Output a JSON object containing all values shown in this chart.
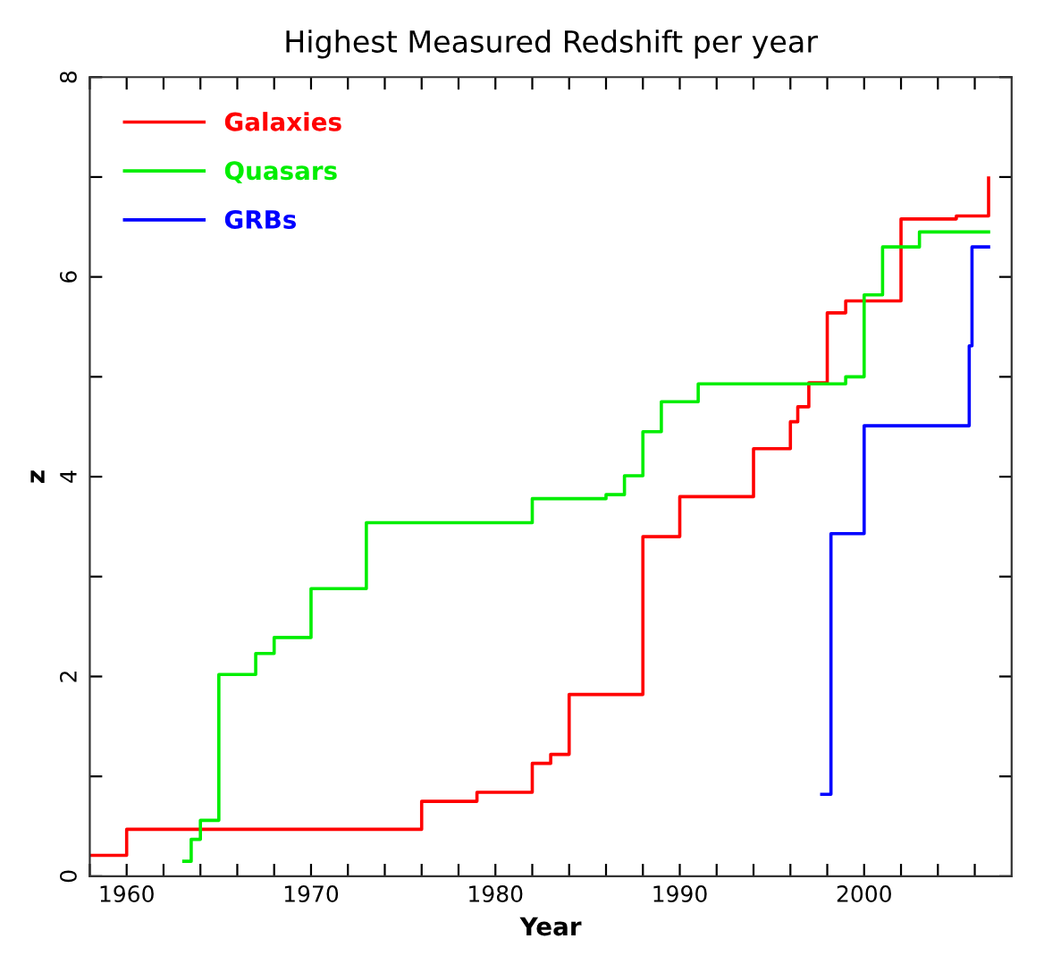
{
  "chart_data": {
    "type": "step",
    "title": "Highest Measured Redshift per year",
    "xlabel": "Year",
    "ylabel": "z",
    "xlim": [
      1958,
      2008
    ],
    "ylim": [
      0,
      8
    ],
    "xticks": [
      {
        "value": 1958,
        "label": null
      },
      1960,
      {
        "value": 1962,
        "label": null
      },
      {
        "value": 1964,
        "label": null
      },
      {
        "value": 1966,
        "label": null
      },
      {
        "value": 1968,
        "label": null
      },
      1970,
      {
        "value": 1972,
        "label": null
      },
      {
        "value": 1974,
        "label": null
      },
      {
        "value": 1976,
        "label": null
      },
      {
        "value": 1978,
        "label": null
      },
      1980,
      {
        "value": 1982,
        "label": null
      },
      {
        "value": 1984,
        "label": null
      },
      {
        "value": 1986,
        "label": null
      },
      {
        "value": 1988,
        "label": null
      },
      1990,
      {
        "value": 1992,
        "label": null
      },
      {
        "value": 1994,
        "label": null
      },
      {
        "value": 1996,
        "label": null
      },
      {
        "value": 1998,
        "label": null
      },
      2000,
      {
        "value": 2002,
        "label": null
      },
      {
        "value": 2004,
        "label": null
      },
      {
        "value": 2006,
        "label": null
      }
    ],
    "yticks": [
      0,
      {
        "value": 1,
        "label": null
      },
      2,
      {
        "value": 3,
        "label": null
      },
      4,
      {
        "value": 5,
        "label": null
      },
      6,
      {
        "value": 7,
        "label": null
      },
      8
    ],
    "grid": false,
    "legend": "top left",
    "marker": "none",
    "line_style": "solid",
    "series": [
      {
        "name": "Galaxies",
        "color": "#ff0000",
        "x": [
          1958,
          1960,
          1976,
          1979,
          1982,
          1983,
          1984,
          1988,
          1990,
          1994,
          1996,
          1996.4,
          1997,
          1998,
          1999,
          2002,
          2005,
          2006.75
        ],
        "values": [
          0.21,
          0.47,
          0.75,
          0.84,
          1.13,
          1.22,
          1.82,
          3.4,
          3.8,
          4.28,
          4.55,
          4.7,
          4.94,
          5.64,
          5.76,
          6.58,
          6.61,
          6.99
        ]
      },
      {
        "name": "Quasars",
        "color": "#00ee00",
        "x": [
          1963.1,
          1963.5,
          1964,
          1965,
          1967,
          1968,
          1970,
          1973,
          1982,
          1986,
          1987,
          1988,
          1989,
          1991,
          1999,
          2000,
          2001,
          2003,
          2006.75
        ],
        "values": [
          0.15,
          0.37,
          0.56,
          2.02,
          2.23,
          2.39,
          2.88,
          3.54,
          3.78,
          3.82,
          4.01,
          4.45,
          4.75,
          4.93,
          5.0,
          5.82,
          6.3,
          6.45,
          6.45
        ]
      },
      {
        "name": "GRBs",
        "color": "#0000ff",
        "x": [
          1997.7,
          1998.2,
          2000,
          2005.7,
          2005.85,
          2006.75
        ],
        "values": [
          0.82,
          3.43,
          4.51,
          5.31,
          6.3,
          6.3
        ]
      }
    ]
  }
}
